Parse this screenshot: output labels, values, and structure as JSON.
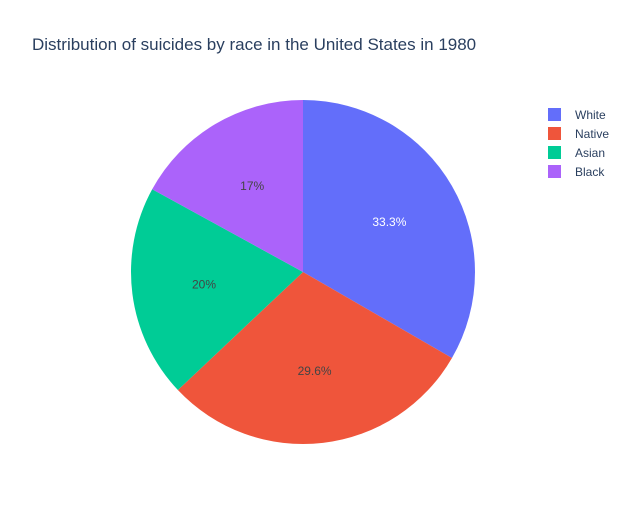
{
  "chart_data": {
    "type": "pie",
    "title": "Distribution of suicides by race in the United States in 1980",
    "categories": [
      "White",
      "Native",
      "Asian",
      "Black"
    ],
    "values": [
      33.3,
      29.6,
      20.0,
      17.0
    ],
    "data_labels": [
      "33.3%",
      "29.6%",
      "20%",
      "17%"
    ],
    "colors": [
      "#636efa",
      "#ef553b",
      "#00cc96",
      "#ab63fa"
    ],
    "label_colors": [
      "#ffffff",
      "#444444",
      "#444444",
      "#444444"
    ],
    "legend": {
      "position": "top-right",
      "entries": [
        "White",
        "Native",
        "Asian",
        "Black"
      ]
    },
    "direction": "clockwise",
    "start": "top"
  }
}
